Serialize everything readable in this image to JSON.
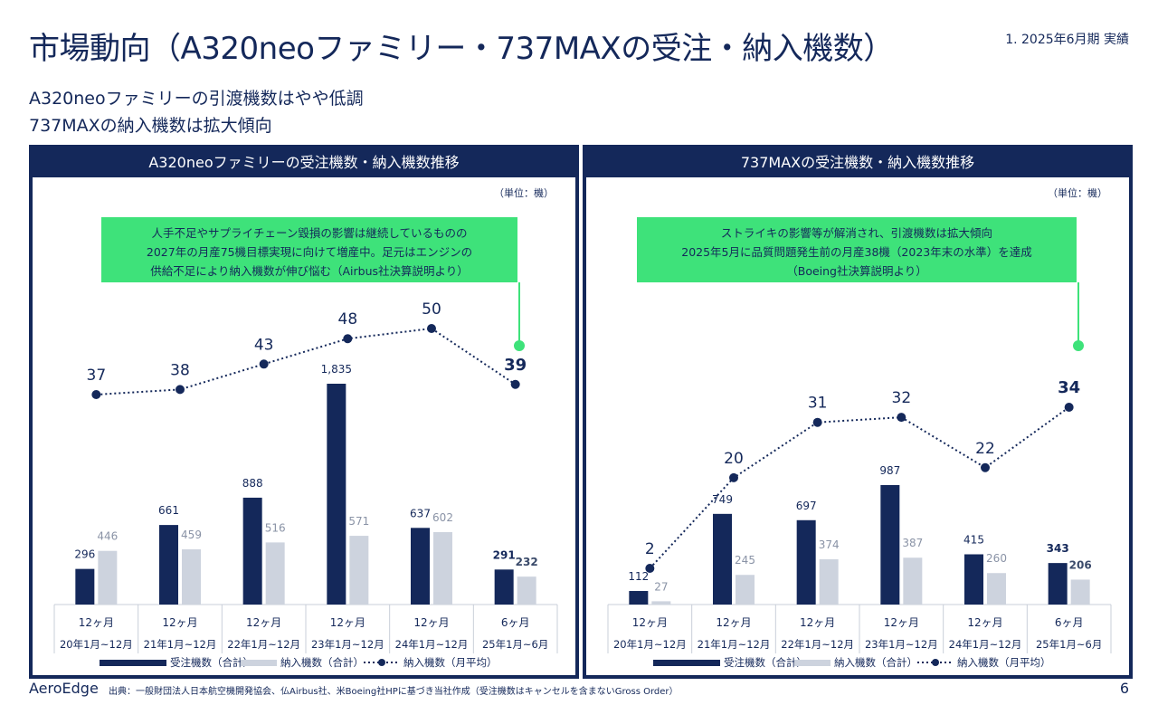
{
  "header": {
    "title": "市場動向（A320neoファミリー・737MAXの受注・納入機数）",
    "period": "1. 2025年6月期 実績",
    "subtitle_1": "A320neoファミリーの引渡機数はやや低調",
    "subtitle_2": "737MAXの納入機数は拡大傾向"
  },
  "footer": {
    "brand": "AeroEdge",
    "source": "出典：一般財団法人日本航空機開発協会、仏Airbus社、米Boeing社HPに基づき当社作成（受注機数はキャンセルを含まないGross Order）",
    "page": "6"
  },
  "colors": {
    "navy": "#14285a",
    "gray": "#cdd3de",
    "green": "#3ee27a",
    "accent_dot": "#3ee27a"
  },
  "chart_data": [
    {
      "type": "bar",
      "title": "A320neoファミリーの受注機数・納入機数推移",
      "unit": "（単位：機）",
      "callout": [
        "人手不足やサプライチェーン毀損の影響は継続しているものの",
        "2027年の月産75機目標実現に向けて増産中。足元はエンジンの",
        "供給不足により納入機数が伸び悩む（Airbus社決算説明より）"
      ],
      "categories": [
        "12ヶ月",
        "12ヶ月",
        "12ヶ月",
        "12ヶ月",
        "12ヶ月",
        "6ヶ月"
      ],
      "periods": [
        "20年1月~12月",
        "21年1月~12月",
        "22年1月~12月",
        "23年1月~12月",
        "24年1月~12月",
        "25年1月~6月"
      ],
      "series": [
        {
          "name": "受注機数（合計）",
          "values": [
            296,
            661,
            888,
            1835,
            637,
            291
          ],
          "labels": [
            "296",
            "661",
            "888",
            "1,835",
            "637",
            "291"
          ]
        },
        {
          "name": "納入機数（合計）",
          "values": [
            446,
            459,
            516,
            571,
            602,
            232
          ],
          "labels": [
            "446",
            "459",
            "516",
            "571",
            "602",
            "232"
          ]
        },
        {
          "name": "納入機数（月平均）",
          "values": [
            37,
            38,
            43,
            48,
            50,
            39
          ],
          "labels": [
            "37",
            "38",
            "43",
            "48",
            "50",
            "39"
          ]
        }
      ]
    },
    {
      "type": "bar",
      "title": "737MAXの受注機数・納入機数推移",
      "unit": "（単位：機）",
      "callout": [
        "ストライキの影響等が解消され、引渡機数は拡大傾向",
        "2025年5月に品質問題発生前の月産38機（2023年末の水準）を達成",
        "（Boeing社決算説明より）"
      ],
      "categories": [
        "12ヶ月",
        "12ヶ月",
        "12ヶ月",
        "12ヶ月",
        "12ヶ月",
        "6ヶ月"
      ],
      "periods": [
        "20年1月~12月",
        "21年1月~12月",
        "22年1月~12月",
        "23年1月~12月",
        "24年1月~12月",
        "25年1月~6月"
      ],
      "series": [
        {
          "name": "受注機数（合計）",
          "values": [
            112,
            749,
            697,
            987,
            415,
            343
          ],
          "labels": [
            "112",
            "749",
            "697",
            "987",
            "415",
            "343"
          ]
        },
        {
          "name": "納入機数（合計）",
          "values": [
            27,
            245,
            374,
            387,
            260,
            206
          ],
          "labels": [
            "27",
            "245",
            "374",
            "387",
            "260",
            "206"
          ]
        },
        {
          "name": "納入機数（月平均）",
          "values": [
            2,
            20,
            31,
            32,
            22,
            34
          ],
          "labels": [
            "2",
            "20",
            "31",
            "32",
            "22",
            "34"
          ]
        }
      ]
    }
  ]
}
